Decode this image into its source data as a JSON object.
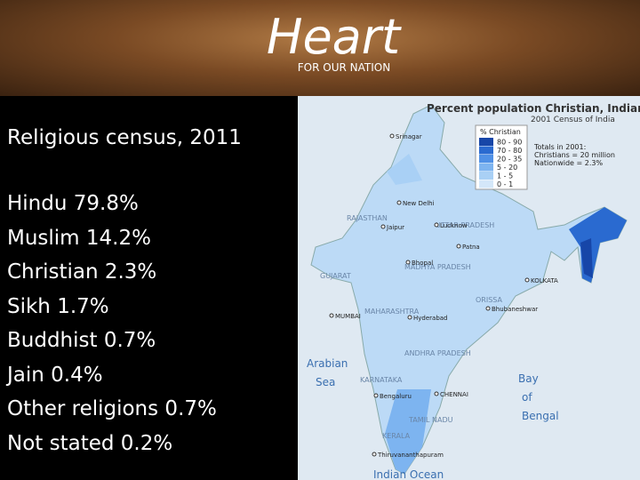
{
  "header": {
    "logo": "Heart",
    "tagline": "FOR OUR NATION"
  },
  "panel": {
    "title": "Religious census, 2011",
    "items": [
      "Hindu 79.8%",
      "Muslim 14.2%",
      "Christian 2.3%",
      "Sikh 1.7%",
      "Buddhist 0.7%",
      "Jain 0.4%",
      "Other religions 0.7%",
      "Not stated 0.2%"
    ]
  },
  "map": {
    "title": "Percent population Christian, Indian states",
    "subtitle": "2001 Census of India",
    "legend": {
      "title": "% Christian",
      "entries": [
        {
          "label": "80 - 90",
          "color": "#1746a8"
        },
        {
          "label": "70 - 80",
          "color": "#2a6ad0"
        },
        {
          "label": "20 - 35",
          "color": "#4f90e6"
        },
        {
          "label": "5 - 20",
          "color": "#7db4f0"
        },
        {
          "label": "1 - 5",
          "color": "#a9d0f5"
        },
        {
          "label": "0 - 1",
          "color": "#d4e7f9"
        }
      ]
    },
    "note": [
      "Totals in 2001:",
      "Christians = 20 million",
      "Nationwide = 2.3%"
    ],
    "seas": [
      "Arabian",
      "Sea",
      "Bay",
      "of",
      "Bengal",
      "Indian Ocean"
    ],
    "states": [
      "RAJASTHAN",
      "UTTAR PRADESH",
      "MADHYA PRADESH",
      "GUJARAT",
      "MAHARASHTRA",
      "ANDHRA PRADESH",
      "KARNATAKA",
      "TAMIL NADU",
      "KERALA",
      "ORISSA"
    ],
    "cities": [
      "Srinagar",
      "New Delhi",
      "Jaipur",
      "Lucknow",
      "Patna",
      "Bhopal",
      "MUMBAI",
      "Hyderabad",
      "Bengaluru",
      "CHENNAI",
      "KOLKATA",
      "Bhubaneshwar",
      "Thiruvananthapuram"
    ]
  }
}
